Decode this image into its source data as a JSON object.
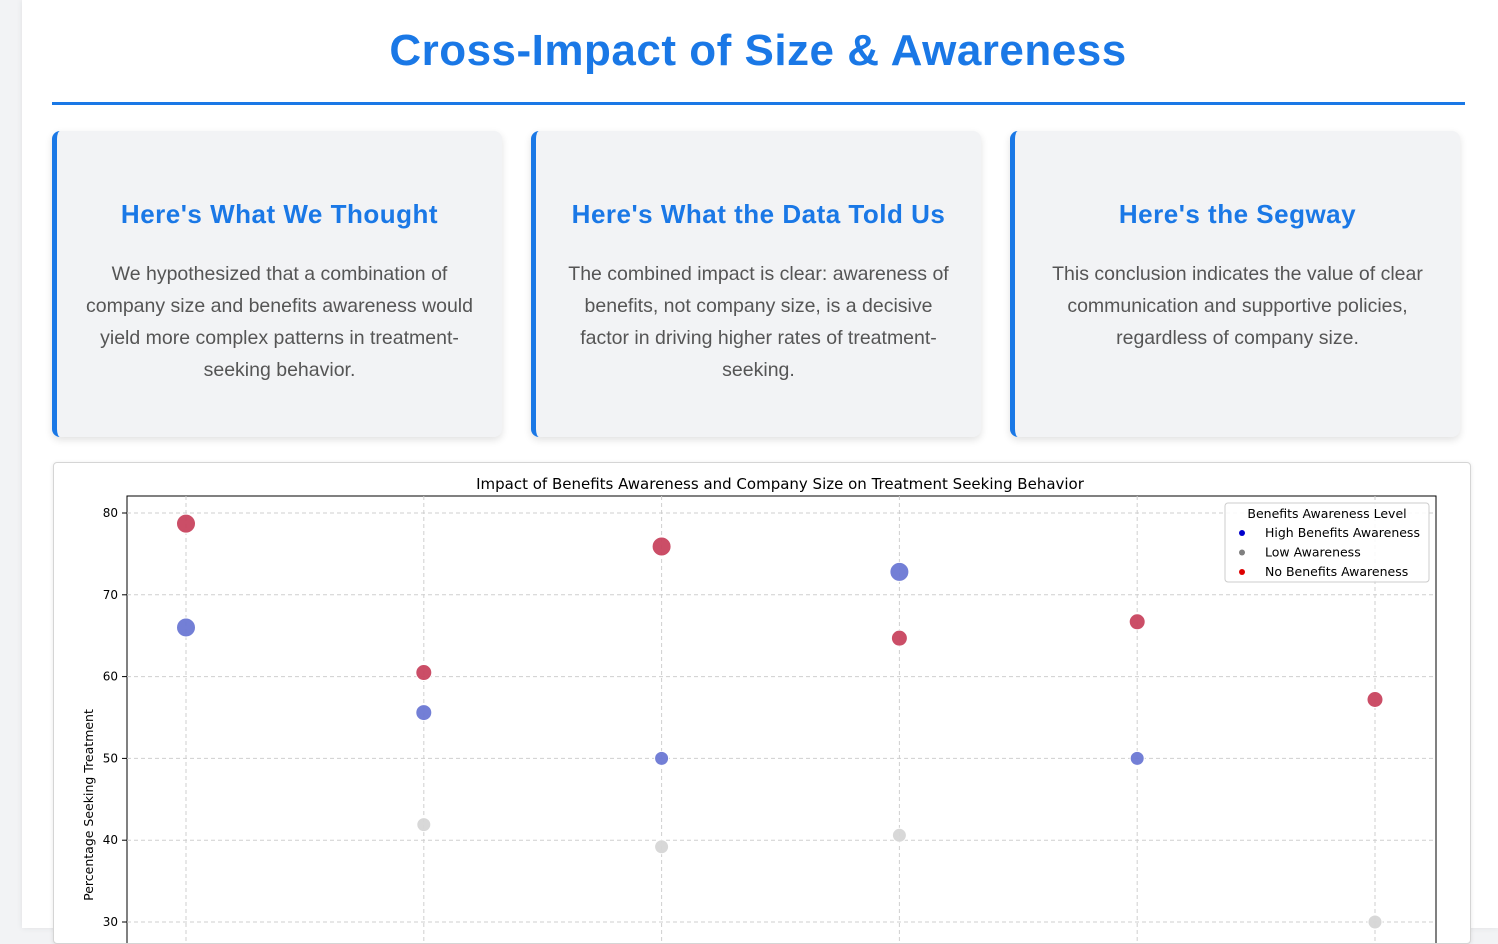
{
  "page": {
    "title": "Cross-Impact of Size & Awareness"
  },
  "cards": [
    {
      "heading": "Here's What We Thought",
      "body": "We hypothesized that a combination of company size and benefits awareness would yield more complex patterns in treatment-seeking behavior."
    },
    {
      "heading": "Here's What the Data Told Us",
      "body": "The combined impact is clear: awareness of benefits, not company size, is a decisive factor in driving higher rates of treatment-seeking."
    },
    {
      "heading": "Here's the Segway",
      "body": "This conclusion indicates the value of clear communication and supportive policies, regardless of company size."
    }
  ],
  "colors": {
    "accent": "#1a78e6",
    "card_bg": "#f2f3f5",
    "body_text": "#555555"
  },
  "chart_data": {
    "type": "scatter",
    "title": "Impact of Benefits Awareness and Company Size on Treatment Seeking Behavior",
    "xlabel": "",
    "ylabel": "Percentage Seeking Treatment",
    "x_positions": [
      1,
      2,
      3,
      4,
      5,
      6
    ],
    "ylim": [
      28,
      82
    ],
    "yticks": [
      30,
      40,
      50,
      60,
      70,
      80
    ],
    "grid": true,
    "legend": {
      "title": "Benefits Awareness Level",
      "placement": "top-right",
      "entries": [
        {
          "label": "High Benefits Awareness",
          "color": "#0000cc"
        },
        {
          "label": "Low Awareness",
          "color": "#808080"
        },
        {
          "label": "No Benefits Awareness",
          "color": "#dd0000"
        }
      ]
    },
    "series": [
      {
        "name": "High Benefits Awareness",
        "color": "#6b78d4",
        "points": [
          {
            "x": 1,
            "y": 66.0,
            "size": 3
          },
          {
            "x": 2,
            "y": 55.6,
            "size": 2
          },
          {
            "x": 3,
            "y": 50.0,
            "size": 1
          },
          {
            "x": 4,
            "y": 72.8,
            "size": 3
          },
          {
            "x": 5,
            "y": 50.0,
            "size": 1
          }
        ]
      },
      {
        "name": "Low Awareness",
        "color": "#d6d6d6",
        "points": [
          {
            "x": 2,
            "y": 41.9,
            "size": 1
          },
          {
            "x": 3,
            "y": 39.2,
            "size": 1
          },
          {
            "x": 4,
            "y": 40.6,
            "size": 1
          },
          {
            "x": 6,
            "y": 30.0,
            "size": 1
          }
        ]
      },
      {
        "name": "No Benefits Awareness",
        "color": "#c8455f",
        "points": [
          {
            "x": 1,
            "y": 78.7,
            "size": 3
          },
          {
            "x": 2,
            "y": 60.5,
            "size": 2
          },
          {
            "x": 3,
            "y": 75.9,
            "size": 3
          },
          {
            "x": 4,
            "y": 64.7,
            "size": 2
          },
          {
            "x": 5,
            "y": 66.7,
            "size": 2
          },
          {
            "x": 6,
            "y": 57.2,
            "size": 2
          }
        ]
      }
    ]
  }
}
